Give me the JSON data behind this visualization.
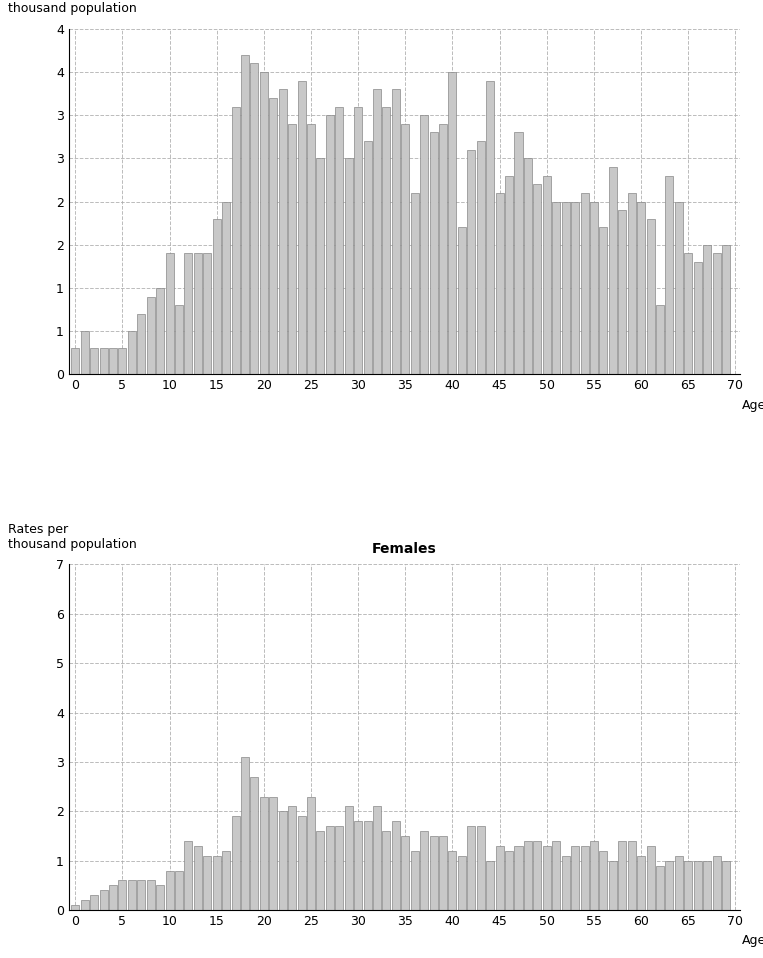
{
  "males": [
    0.3,
    0.5,
    0.3,
    0.3,
    0.3,
    0.3,
    0.5,
    0.7,
    0.9,
    1.0,
    1.4,
    0.8,
    1.4,
    1.4,
    1.4,
    1.8,
    2.0,
    3.1,
    3.7,
    3.6,
    3.5,
    3.2,
    3.3,
    2.9,
    3.4,
    2.9,
    2.5,
    3.0,
    3.1,
    2.5,
    3.1,
    2.7,
    3.3,
    3.1,
    3.3,
    2.9,
    2.1,
    3.0,
    2.8,
    2.9,
    3.5,
    1.7,
    2.6,
    2.7,
    3.4,
    2.1,
    2.3,
    2.8,
    2.5,
    2.2,
    2.3,
    2.0,
    2.0,
    2.0,
    2.1,
    2.0,
    1.7,
    2.4,
    1.9,
    2.1,
    2.0,
    1.8,
    0.8,
    2.3,
    2.0,
    1.4,
    1.3,
    1.5,
    1.4,
    1.5
  ],
  "females": [
    0.1,
    0.2,
    0.3,
    0.4,
    0.5,
    0.6,
    0.6,
    0.6,
    0.6,
    0.5,
    0.8,
    0.8,
    1.4,
    1.3,
    1.1,
    1.1,
    1.2,
    1.9,
    3.1,
    2.7,
    2.3,
    2.3,
    2.0,
    2.1,
    1.9,
    2.3,
    1.6,
    1.7,
    1.7,
    2.1,
    1.8,
    1.8,
    2.1,
    1.6,
    1.8,
    1.5,
    1.2,
    1.6,
    1.5,
    1.5,
    1.2,
    1.1,
    1.7,
    1.7,
    1.0,
    1.3,
    1.2,
    1.3,
    1.4,
    1.4,
    1.3,
    1.4,
    1.1,
    1.3,
    1.3,
    1.4,
    1.2,
    1.0,
    1.4,
    1.4,
    1.1,
    1.3,
    0.9,
    1.0,
    1.1,
    1.0,
    1.0,
    1.0,
    1.1,
    1.0
  ],
  "bar_color": "#c8c8c8",
  "bar_edge_color": "#888888",
  "grid_color": "#aaaaaa",
  "background_color": "#ffffff",
  "males_ylabel": "Rates per\nthousand population",
  "females_ylabel": "Rates per\nthousand population",
  "xlabel": "Age",
  "females_title": "Females",
  "males_ylim": [
    0,
    4.0
  ],
  "females_ylim": [
    0,
    7.0
  ],
  "males_yticks": [
    0.0,
    0.5,
    1.0,
    1.5,
    2.0,
    2.5,
    3.0,
    3.5,
    4.0
  ],
  "males_yticklabels": [
    "0",
    "1",
    "1",
    "2",
    "2",
    "3",
    "3",
    "4",
    "4"
  ],
  "females_yticks": [
    0.0,
    1.0,
    2.0,
    3.0,
    4.0,
    5.0,
    6.0,
    7.0
  ],
  "females_yticklabels": [
    "0",
    "1",
    "2",
    "3",
    "4",
    "5",
    "6",
    "7"
  ],
  "xticks": [
    0,
    5,
    10,
    15,
    20,
    25,
    30,
    35,
    40,
    45,
    50,
    55,
    60,
    65,
    70
  ]
}
